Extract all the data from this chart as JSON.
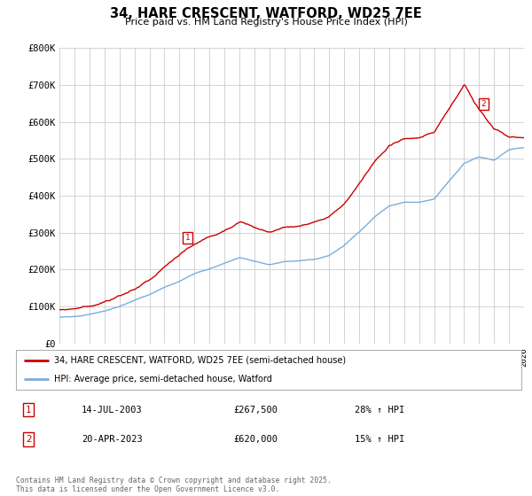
{
  "title": "34, HARE CRESCENT, WATFORD, WD25 7EE",
  "subtitle": "Price paid vs. HM Land Registry's House Price Index (HPI)",
  "xlim": [
    1995,
    2026
  ],
  "ylim": [
    0,
    800000
  ],
  "yticks": [
    0,
    100000,
    200000,
    300000,
    400000,
    500000,
    600000,
    700000,
    800000
  ],
  "ytick_labels": [
    "£0",
    "£100K",
    "£200K",
    "£300K",
    "£400K",
    "£500K",
    "£600K",
    "£700K",
    "£800K"
  ],
  "legend_entry1": "34, HARE CRESCENT, WATFORD, WD25 7EE (semi-detached house)",
  "legend_entry2": "HPI: Average price, semi-detached house, Watford",
  "sale1_label": "1",
  "sale1_date": "14-JUL-2003",
  "sale1_price": "£267,500",
  "sale1_hpi": "28% ↑ HPI",
  "sale2_label": "2",
  "sale2_date": "20-APR-2023",
  "sale2_price": "£620,000",
  "sale2_hpi": "15% ↑ HPI",
  "footer": "Contains HM Land Registry data © Crown copyright and database right 2025.\nThis data is licensed under the Open Government Licence v3.0.",
  "line_color_red": "#cc0000",
  "line_color_blue": "#7aaddb",
  "bg_color": "#ffffff",
  "grid_color": "#cccccc",
  "sale1_x": 2003.54,
  "sale2_x": 2023.31,
  "sale1_y": 267500,
  "sale2_y": 620000,
  "title_fontsize": 10.5,
  "subtitle_fontsize": 8.0,
  "ytick_fontsize": 7.5,
  "xtick_fontsize": 6.5
}
